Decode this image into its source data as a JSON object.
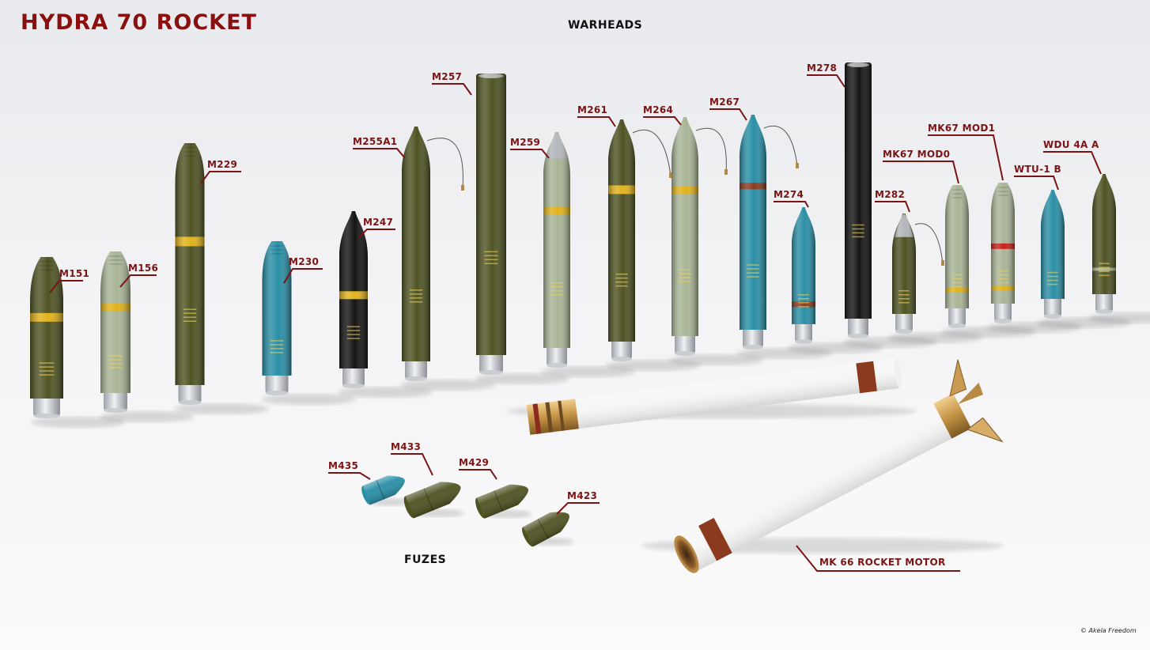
{
  "title": "HYDRA 70 ROCKET",
  "sections": {
    "warheads": "WARHEADS",
    "fuzes": "FUZES"
  },
  "credit": "© Akela Freedom",
  "motor_label": "MK 66 ROCKET MOTOR",
  "colors": {
    "title": "#8a1010",
    "label": "#7a1414",
    "olive": "#4f5322",
    "pale_green": "#a9b596",
    "teal": "#2a8fa6",
    "black": "#141414",
    "yellow_band": "#e1b21b",
    "red_band": "#c8201c",
    "motor_white": "#f7f7f7",
    "motor_band": "#8b3a1e",
    "brass": "#c99a54"
  },
  "warheads": [
    {
      "label": "M151",
      "color": "olive"
    },
    {
      "label": "M156",
      "color": "pale_green"
    },
    {
      "label": "M229",
      "color": "olive"
    },
    {
      "label": "M230",
      "color": "teal"
    },
    {
      "label": "M247",
      "color": "black"
    },
    {
      "label": "M255A1",
      "color": "olive"
    },
    {
      "label": "M257",
      "color": "olive"
    },
    {
      "label": "M259",
      "color": "pale_green"
    },
    {
      "label": "M261",
      "color": "olive"
    },
    {
      "label": "M264",
      "color": "pale_green"
    },
    {
      "label": "M267",
      "color": "teal"
    },
    {
      "label": "M274",
      "color": "teal"
    },
    {
      "label": "M278",
      "color": "black"
    },
    {
      "label": "M282",
      "color": "olive"
    },
    {
      "label": "MK67 MOD0",
      "color": "pale_green"
    },
    {
      "label": "MK67 MOD1",
      "color": "pale_green"
    },
    {
      "label": "WTU-1 B",
      "color": "teal"
    },
    {
      "label": "WDU 4A A",
      "color": "olive"
    }
  ],
  "fuzes": [
    {
      "label": "M435",
      "color": "teal"
    },
    {
      "label": "M433",
      "color": "olive"
    },
    {
      "label": "M429",
      "color": "olive"
    },
    {
      "label": "M423",
      "color": "olive"
    }
  ]
}
